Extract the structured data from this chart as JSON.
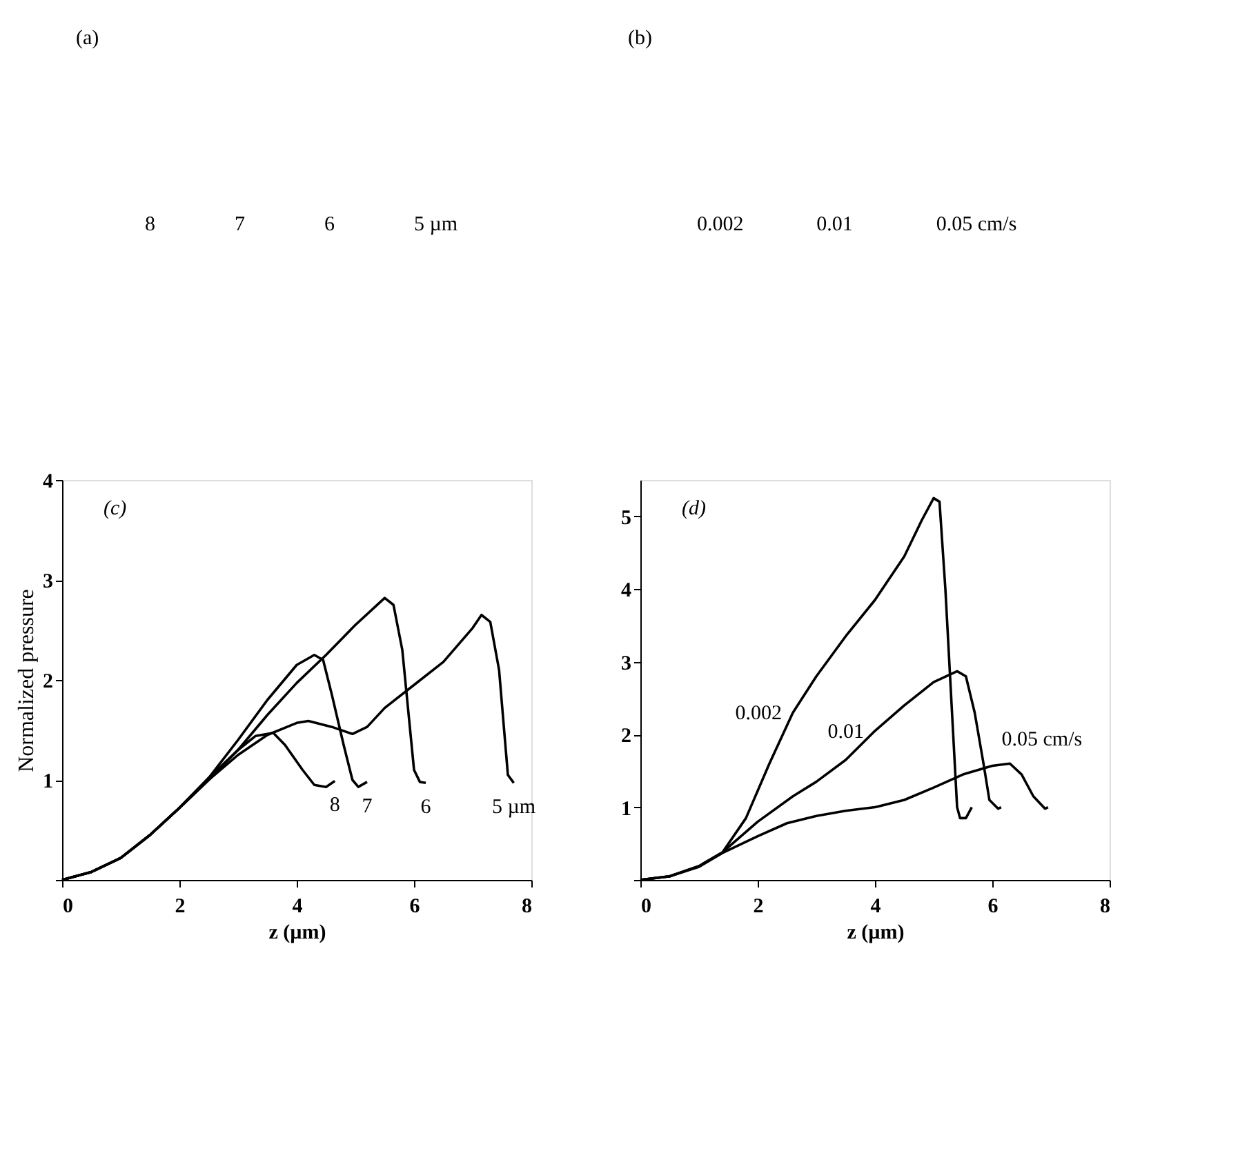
{
  "chart_data": [
    {
      "type": "other",
      "annotations": [
        "(a)",
        "8",
        "7",
        "6",
        "5 µm"
      ]
    },
    {
      "type": "other",
      "annotations": [
        "(b)",
        "0.002",
        "0.01",
        "0.05 cm/s"
      ]
    },
    {
      "type": "line",
      "ylabel": "Normalized pressure",
      "xlabel": "z (µm)",
      "xlim": [
        0,
        8
      ],
      "ylim": [
        0,
        4
      ],
      "xticks": [
        0,
        2,
        4,
        6,
        8
      ],
      "yticks": [
        {
          "value": 0,
          "label": null
        },
        1,
        2,
        3,
        4
      ],
      "grid": false,
      "legend": false,
      "marker": "none",
      "line_style": "solid",
      "annotations": [
        "(c)"
      ],
      "series": [
        {
          "name": "8",
          "color": "#000000",
          "x": [
            0,
            0.5,
            1,
            1.5,
            2,
            2.5,
            3,
            3.3,
            3.6,
            3.8,
            4.1,
            4.3,
            4.5,
            4.65
          ],
          "values": [
            0,
            0.08,
            0.22,
            0.45,
            0.72,
            1.02,
            1.3,
            1.44,
            1.47,
            1.35,
            1.1,
            0.95,
            0.93,
            0.99
          ]
        },
        {
          "name": "7",
          "color": "#000000",
          "x": [
            0,
            0.5,
            1,
            1.5,
            2,
            2.5,
            3,
            3.5,
            4,
            4.3,
            4.45,
            4.6,
            4.8,
            4.95,
            5.05,
            5.2
          ],
          "values": [
            0,
            0.08,
            0.22,
            0.45,
            0.72,
            1.02,
            1.4,
            1.8,
            2.15,
            2.25,
            2.2,
            1.85,
            1.35,
            1.0,
            0.93,
            0.98
          ]
        },
        {
          "name": "6",
          "color": "#000000",
          "x": [
            0,
            0.5,
            1,
            1.5,
            2,
            2.5,
            3,
            3.5,
            4,
            4.5,
            5,
            5.5,
            5.65,
            5.8,
            5.9,
            6.0,
            6.1,
            6.2
          ],
          "values": [
            0,
            0.08,
            0.22,
            0.45,
            0.72,
            1.0,
            1.3,
            1.65,
            1.97,
            2.25,
            2.55,
            2.82,
            2.75,
            2.3,
            1.7,
            1.1,
            0.98,
            0.97
          ]
        },
        {
          "name": "5 µm",
          "color": "#000000",
          "x": [
            0,
            0.5,
            1,
            1.5,
            2,
            2.5,
            3,
            3.5,
            4,
            4.2,
            4.6,
            4.95,
            5.2,
            5.5,
            6,
            6.5,
            7,
            7.15,
            7.3,
            7.45,
            7.55,
            7.6,
            7.7
          ],
          "values": [
            0,
            0.08,
            0.22,
            0.45,
            0.72,
            1.0,
            1.25,
            1.45,
            1.57,
            1.59,
            1.53,
            1.46,
            1.53,
            1.72,
            1.95,
            2.18,
            2.52,
            2.65,
            2.58,
            2.1,
            1.4,
            1.05,
            0.97
          ]
        }
      ]
    },
    {
      "type": "line",
      "xlabel": "z (µm)",
      "xlim": [
        0,
        8
      ],
      "ylim": [
        0,
        5.5
      ],
      "xticks": [
        0,
        2,
        4,
        6,
        8
      ],
      "yticks": [
        {
          "value": 0,
          "label": null
        },
        1,
        2,
        3,
        4,
        5
      ],
      "grid": false,
      "legend": false,
      "marker": "none",
      "line_style": "solid",
      "annotations": [
        "(d)"
      ],
      "series": [
        {
          "name": "0.002",
          "color": "#000000",
          "x": [
            0,
            0.5,
            1,
            1.4,
            1.8,
            2.2,
            2.6,
            3,
            3.5,
            4,
            4.5,
            4.8,
            5,
            5.1,
            5.2,
            5.3,
            5.4,
            5.45,
            5.55,
            5.65
          ],
          "values": [
            0,
            0.05,
            0.19,
            0.38,
            0.85,
            1.6,
            2.3,
            2.8,
            3.35,
            3.85,
            4.45,
            4.95,
            5.25,
            5.2,
            4.0,
            2.5,
            1.0,
            0.85,
            0.85,
            1.0
          ]
        },
        {
          "name": "0.01",
          "color": "#000000",
          "x": [
            0,
            0.5,
            1,
            1.4,
            2,
            2.6,
            3,
            3.5,
            4,
            4.5,
            5,
            5.4,
            5.55,
            5.7,
            5.85,
            5.95,
            6.1,
            6.15
          ],
          "values": [
            0,
            0.05,
            0.19,
            0.38,
            0.8,
            1.15,
            1.35,
            1.65,
            2.05,
            2.4,
            2.72,
            2.87,
            2.8,
            2.3,
            1.6,
            1.1,
            0.98,
            1.0
          ]
        },
        {
          "name": "0.05 cm/s",
          "color": "#000000",
          "x": [
            0,
            0.5,
            1,
            1.4,
            2,
            2.5,
            3,
            3.5,
            4,
            4.5,
            5,
            5.5,
            6,
            6.3,
            6.5,
            6.7,
            6.9,
            6.95
          ],
          "values": [
            0,
            0.05,
            0.18,
            0.37,
            0.6,
            0.78,
            0.88,
            0.95,
            1.0,
            1.1,
            1.27,
            1.45,
            1.57,
            1.6,
            1.45,
            1.15,
            0.98,
            1.0
          ]
        }
      ]
    }
  ]
}
